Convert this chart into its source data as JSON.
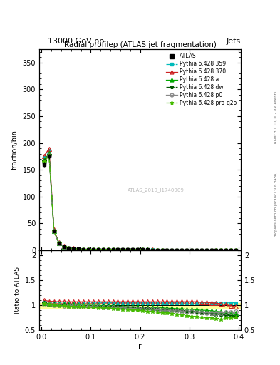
{
  "title_top": "13000 GeV pp",
  "title_right": "Jets",
  "main_title": "Radial profileρ (ATLAS jet fragmentation)",
  "ylabel_main": "fraction/bin",
  "ylabel_ratio": "Ratio to ATLAS",
  "xlabel": "r",
  "right_label_top": "Rivet 3.1.10, ≥ 2.8M events",
  "right_label_bottom": "mcplots.cern.ch [arXiv:1306.3436]",
  "watermark": "ATLAS_2019_I1740909",
  "ylim_main": [
    0,
    375
  ],
  "ylim_ratio": [
    0.5,
    2.1
  ],
  "xlim": [
    -0.005,
    0.405
  ],
  "r_values": [
    0.005,
    0.015,
    0.025,
    0.035,
    0.045,
    0.055,
    0.065,
    0.075,
    0.085,
    0.095,
    0.105,
    0.115,
    0.125,
    0.135,
    0.145,
    0.155,
    0.165,
    0.175,
    0.185,
    0.195,
    0.205,
    0.215,
    0.225,
    0.235,
    0.245,
    0.255,
    0.265,
    0.275,
    0.285,
    0.295,
    0.305,
    0.315,
    0.325,
    0.335,
    0.345,
    0.355,
    0.365,
    0.375,
    0.385,
    0.395
  ],
  "atlas_values": [
    160,
    175,
    35,
    13,
    6.5,
    4.0,
    2.8,
    2.0,
    1.5,
    1.2,
    1.0,
    0.85,
    0.75,
    0.65,
    0.58,
    0.52,
    0.47,
    0.43,
    0.39,
    0.36,
    0.33,
    0.31,
    0.28,
    0.26,
    0.24,
    0.22,
    0.21,
    0.19,
    0.18,
    0.17,
    0.16,
    0.15,
    0.14,
    0.13,
    0.12,
    0.11,
    0.1,
    0.095,
    0.09,
    0.085
  ],
  "atlas_err": [
    5,
    5,
    1,
    0.5,
    0.3,
    0.2,
    0.15,
    0.1,
    0.08,
    0.07,
    0.06,
    0.05,
    0.04,
    0.04,
    0.03,
    0.03,
    0.02,
    0.02,
    0.02,
    0.02,
    0.015,
    0.015,
    0.01,
    0.01,
    0.01,
    0.01,
    0.01,
    0.01,
    0.01,
    0.01,
    0.01,
    0.01,
    0.01,
    0.01,
    0.01,
    0.01,
    0.01,
    0.01,
    0.01,
    0.01
  ],
  "series": [
    {
      "name": "Pythia 6.428 359",
      "color": "#00bbbb",
      "linestyle": "--",
      "marker": "s",
      "markersize": 3,
      "fillstyle": "full",
      "ratio": [
        1.08,
        1.06,
        1.055,
        1.05,
        1.05,
        1.05,
        1.05,
        1.05,
        1.05,
        1.05,
        1.05,
        1.05,
        1.05,
        1.05,
        1.05,
        1.05,
        1.05,
        1.05,
        1.05,
        1.05,
        1.05,
        1.05,
        1.05,
        1.05,
        1.05,
        1.05,
        1.05,
        1.05,
        1.05,
        1.05,
        1.05,
        1.05,
        1.05,
        1.05,
        1.05,
        1.05,
        1.05,
        1.05,
        1.05,
        1.05
      ]
    },
    {
      "name": "Pythia 6.428 370",
      "color": "#cc2222",
      "linestyle": "-",
      "marker": "^",
      "markersize": 4,
      "fillstyle": "none",
      "ratio": [
        1.1,
        1.08,
        1.075,
        1.07,
        1.07,
        1.07,
        1.07,
        1.07,
        1.07,
        1.07,
        1.07,
        1.07,
        1.07,
        1.07,
        1.07,
        1.07,
        1.07,
        1.07,
        1.07,
        1.07,
        1.07,
        1.07,
        1.07,
        1.07,
        1.07,
        1.07,
        1.07,
        1.07,
        1.07,
        1.07,
        1.07,
        1.07,
        1.06,
        1.06,
        1.05,
        1.04,
        1.03,
        1.01,
        0.99,
        0.97
      ]
    },
    {
      "name": "Pythia 6.428 a",
      "color": "#00aa00",
      "linestyle": "-",
      "marker": "^",
      "markersize": 4,
      "fillstyle": "full",
      "ratio": [
        1.05,
        1.03,
        1.02,
        1.01,
        1.01,
        1.01,
        1.01,
        1.0,
        1.0,
        1.0,
        1.0,
        1.0,
        0.99,
        0.99,
        0.99,
        0.98,
        0.98,
        0.97,
        0.97,
        0.97,
        0.96,
        0.96,
        0.96,
        0.95,
        0.95,
        0.94,
        0.94,
        0.93,
        0.93,
        0.92,
        0.92,
        0.91,
        0.9,
        0.9,
        0.89,
        0.88,
        0.87,
        0.86,
        0.85,
        0.84
      ]
    },
    {
      "name": "Pythia 6.428 dw",
      "color": "#005500",
      "linestyle": "--",
      "marker": "*",
      "markersize": 4,
      "fillstyle": "full",
      "ratio": [
        1.04,
        1.02,
        1.01,
        1.0,
        1.0,
        1.0,
        0.99,
        0.99,
        0.99,
        0.99,
        0.98,
        0.98,
        0.98,
        0.97,
        0.97,
        0.97,
        0.96,
        0.96,
        0.95,
        0.95,
        0.94,
        0.94,
        0.93,
        0.93,
        0.92,
        0.91,
        0.91,
        0.9,
        0.89,
        0.88,
        0.87,
        0.86,
        0.85,
        0.84,
        0.83,
        0.82,
        0.81,
        0.8,
        0.79,
        0.78
      ]
    },
    {
      "name": "Pythia 6.428 p0",
      "color": "#888888",
      "linestyle": "-",
      "marker": "o",
      "markersize": 4,
      "fillstyle": "none",
      "ratio": [
        1.02,
        1.01,
        1.0,
        1.0,
        0.99,
        0.99,
        0.99,
        0.98,
        0.98,
        0.98,
        0.97,
        0.97,
        0.96,
        0.96,
        0.96,
        0.95,
        0.95,
        0.94,
        0.94,
        0.93,
        0.93,
        0.92,
        0.92,
        0.91,
        0.9,
        0.9,
        0.89,
        0.89,
        0.88,
        0.87,
        0.87,
        0.86,
        0.86,
        0.85,
        0.85,
        0.85,
        0.85,
        0.86,
        0.86,
        0.87
      ]
    },
    {
      "name": "Pythia 6.428 pro-q2o",
      "color": "#44bb00",
      "linestyle": "-.",
      "marker": "*",
      "markersize": 4,
      "fillstyle": "full",
      "ratio": [
        1.03,
        1.01,
        1.0,
        0.99,
        0.99,
        0.98,
        0.98,
        0.97,
        0.97,
        0.96,
        0.96,
        0.95,
        0.95,
        0.94,
        0.93,
        0.93,
        0.92,
        0.91,
        0.9,
        0.9,
        0.89,
        0.88,
        0.87,
        0.86,
        0.85,
        0.84,
        0.83,
        0.82,
        0.81,
        0.79,
        0.78,
        0.77,
        0.76,
        0.75,
        0.74,
        0.73,
        0.72,
        0.74,
        0.75,
        0.76
      ]
    }
  ],
  "atlas_band_color": "#ffff99",
  "background_color": "#ffffff",
  "xticks": [
    0.0,
    0.1,
    0.2,
    0.3,
    0.4
  ],
  "yticks_main": [
    0,
    50,
    100,
    150,
    200,
    250,
    300,
    350
  ],
  "yticks_ratio": [
    0.5,
    1.0,
    1.5,
    2.0
  ]
}
